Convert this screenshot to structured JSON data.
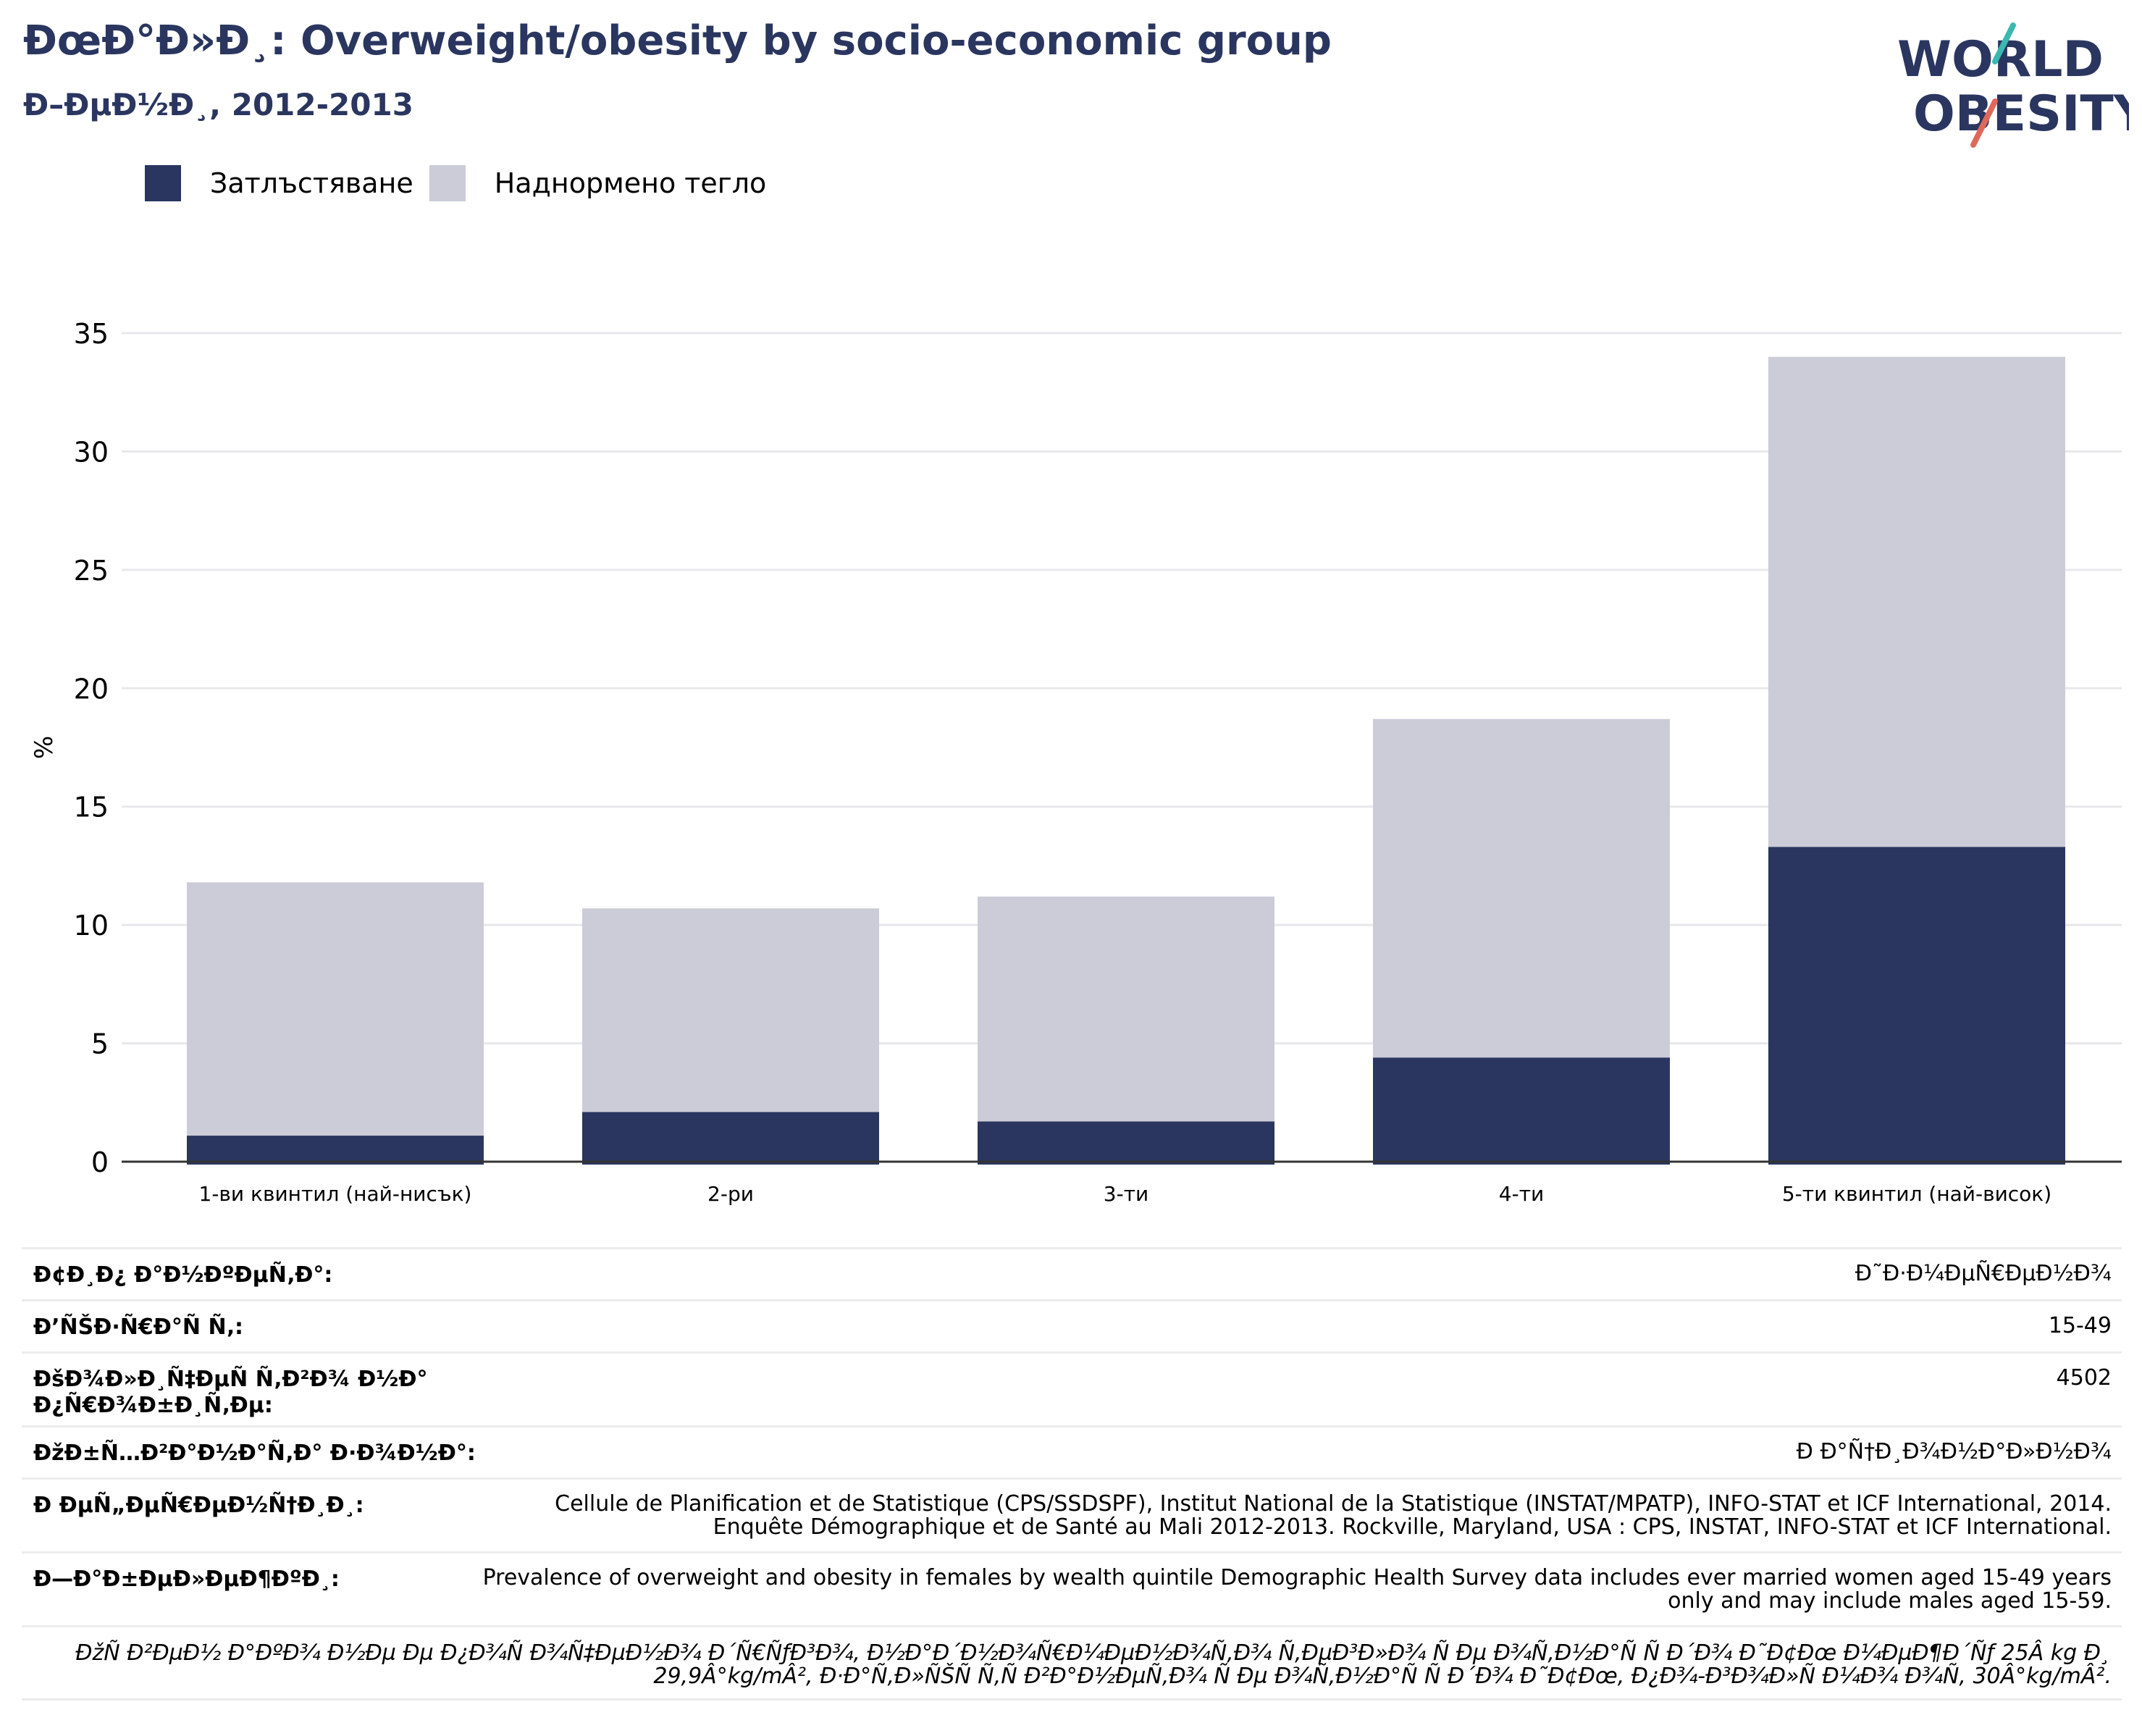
{
  "header": {
    "title": "ÐœÐ°Ð»Ð¸: Overweight/obesity by socio-economic group",
    "subtitle": "Ð–ÐµÐ½Ð¸, 2012-2013"
  },
  "logo": {
    "line1": "WORLD",
    "line2": "OBESITY"
  },
  "legend": {
    "obesity_label": "Затлъстяване",
    "overweight_label": "Наднормено тегло"
  },
  "colors": {
    "obesity": "#2a365f",
    "overweight": "#cbccd7",
    "title": "#2a365f",
    "logo_accent_teal": "#3bb8b0",
    "logo_accent_red": "#e0685a"
  },
  "chart_data": {
    "type": "bar",
    "stacked": true,
    "categories": [
      "1-ви квинтил (най-нисък)",
      "2-ри",
      "3-ти",
      "4-ти",
      "5-ти квинтил (най-висок)"
    ],
    "series": [
      {
        "name": "Затлъстяване",
        "values": [
          1.1,
          2.1,
          1.7,
          4.4,
          13.3
        ]
      },
      {
        "name": "Наднормено тегло",
        "values": [
          10.7,
          8.6,
          9.5,
          14.3,
          20.7
        ]
      }
    ],
    "ylabel": "%",
    "ylim": [
      0,
      35
    ],
    "yticks": [
      0,
      5,
      10,
      15,
      20,
      25,
      30,
      35
    ],
    "grid": true,
    "legend_position": "top-left"
  },
  "metadata": {
    "rows": [
      {
        "label": "Ð¢Ð¸Ð¿ Ð°Ð½ÐºÐµÑ‚Ð°:",
        "value": "Ð˜Ð·Ð¼ÐµÑ€ÐµÐ½Ð¾"
      },
      {
        "label": "Ð’ÑŠÐ·Ñ€Ð°Ñ Ñ‚:",
        "value": "15-49"
      },
      {
        "label": "ÐšÐ¾Ð»Ð¸Ñ‡ÐµÑ Ñ‚Ð²Ð¾ Ð½Ð° Ð¿Ñ€Ð¾Ð±Ð¸Ñ‚Ðµ:",
        "value": "4502"
      },
      {
        "label": "ÐžÐ±Ñ…Ð²Ð°Ð½Ð°Ñ‚Ð° Ð·Ð¾Ð½Ð°:",
        "value": "Ð Ð°Ñ†Ð¸Ð¾Ð½Ð°Ð»Ð½Ð¾"
      },
      {
        "label": "Ð ÐµÑ„ÐµÑ€ÐµÐ½Ñ†Ð¸Ð¸:",
        "value": "Cellule de Planification et de Statistique (CPS/SSDSPF), Institut National de la Statistique (INSTAT/MPATP), INFO-STAT et ICF International, 2014. Enquête Démographique et de Santé au Mali 2012-2013. Rockville, Maryland, USA : CPS, INSTAT, INFO-STAT et ICF International."
      },
      {
        "label": "Ð—Ð°Ð±ÐµÐ»ÐµÐ¶ÐºÐ¸:",
        "value": "Prevalence of overweight and obesity in females by wealth quintile Demographic Health Survey data includes ever married women aged 15-49 years only and may include males aged 15-59."
      }
    ],
    "footnote": "ÐžÑ Ð²ÐµÐ½ Ð°ÐºÐ¾ Ð½Ðµ Ðµ Ð¿Ð¾Ñ Ð¾Ñ‡ÐµÐ½Ð¾ Ð´Ñ€ÑƒÐ³Ð¾, Ð½Ð°Ð´Ð½Ð¾Ñ€Ð¼ÐµÐ½Ð¾Ñ‚Ð¾ Ñ‚ÐµÐ³Ð»Ð¾ Ñ Ðµ Ð¾Ñ‚Ð½Ð°Ñ Ñ  Ð´Ð¾ Ð˜Ð¢Ðœ Ð¼ÐµÐ¶Ð´Ñƒ 25Â kg Ð¸ 29,9Â°kg/mÂ², Ð·Ð°Ñ‚Ð»ÑŠÑ Ñ‚Ñ Ð²Ð°Ð½ÐµÑ‚Ð¾ Ñ Ðµ Ð¾Ñ‚Ð½Ð°Ñ Ñ  Ð´Ð¾ Ð˜Ð¢Ðœ, Ð¿Ð¾-Ð³Ð¾Ð»Ñ Ð¼Ð¾ Ð¾Ñ‚ 30Â°kg/mÂ²."
  }
}
